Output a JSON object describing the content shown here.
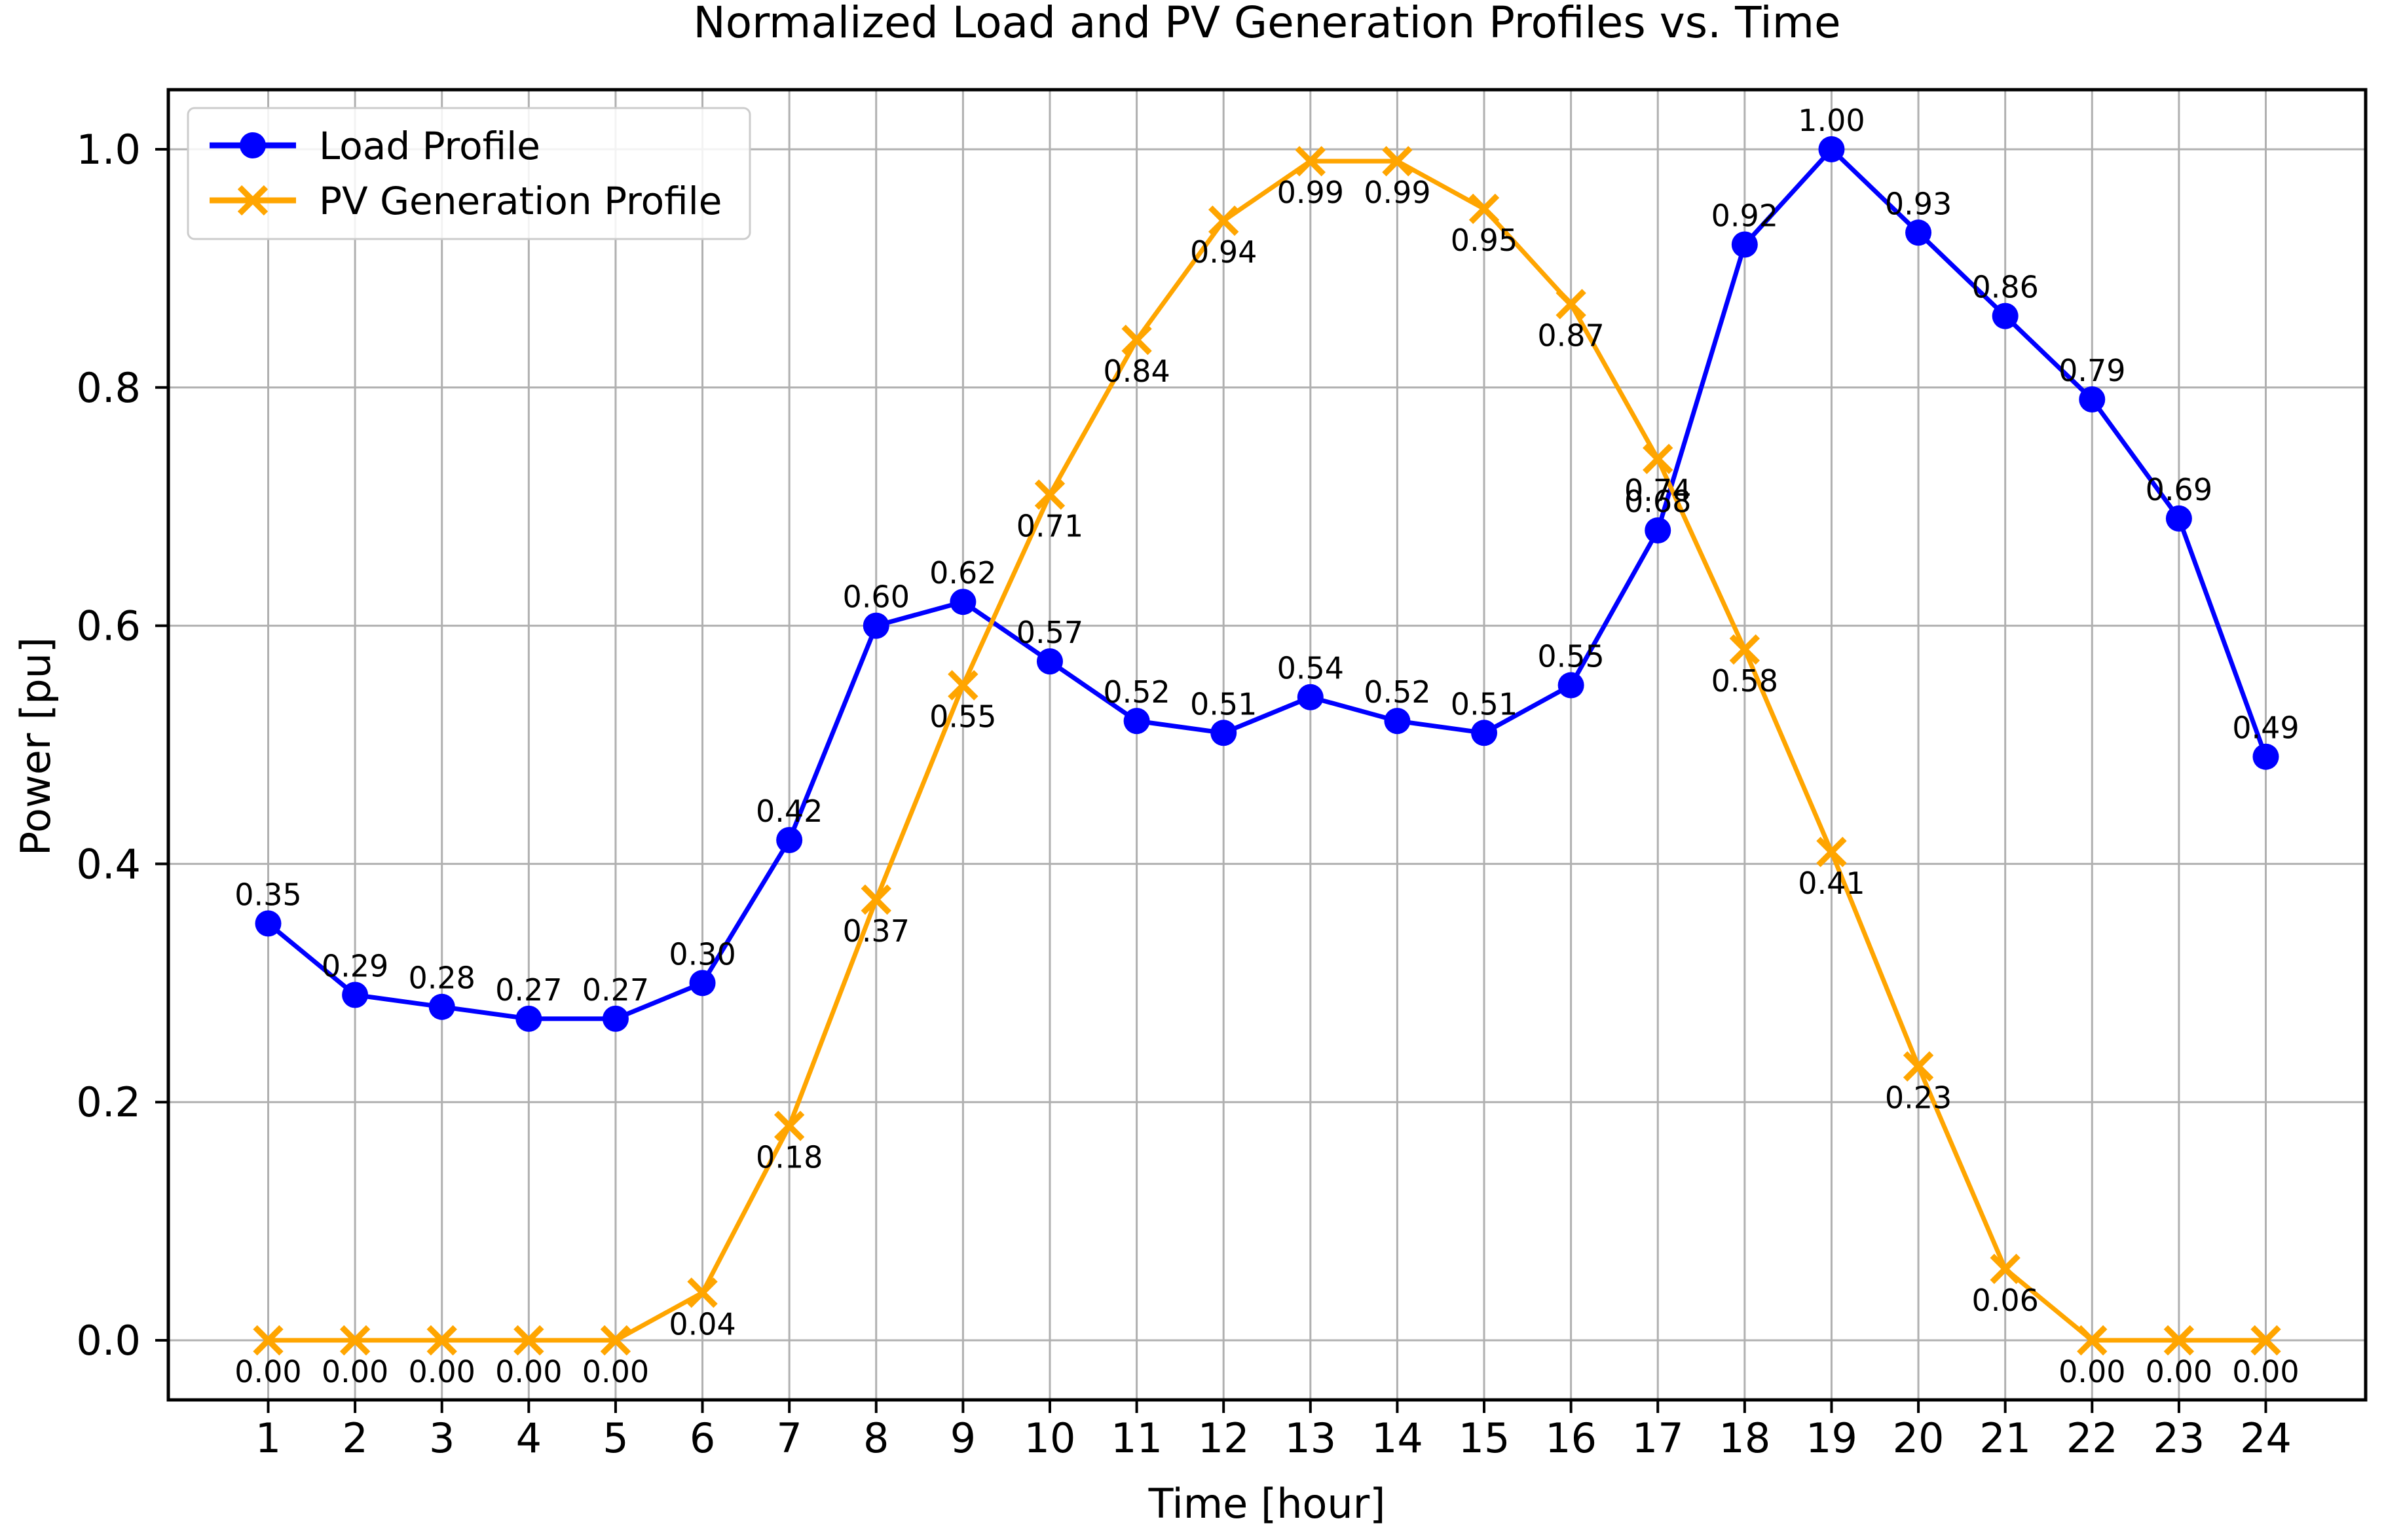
{
  "chart_data": {
    "type": "line",
    "title": "Normalized Load and PV Generation Profiles vs. Time",
    "xlabel": "Time [hour]",
    "ylabel": "Power [pu]",
    "x": [
      1,
      2,
      3,
      4,
      5,
      6,
      7,
      8,
      9,
      10,
      11,
      12,
      13,
      14,
      15,
      16,
      17,
      18,
      19,
      20,
      21,
      22,
      23,
      24
    ],
    "x_tick_labels": [
      "1",
      "2",
      "3",
      "4",
      "5",
      "6",
      "7",
      "8",
      "9",
      "10",
      "11",
      "12",
      "13",
      "14",
      "15",
      "16",
      "17",
      "18",
      "19",
      "20",
      "21",
      "22",
      "23",
      "24"
    ],
    "y_ticks": [
      0.0,
      0.2,
      0.4,
      0.6,
      0.8,
      1.0
    ],
    "y_tick_labels": [
      "0.0",
      "0.2",
      "0.4",
      "0.6",
      "0.8",
      "1.0"
    ],
    "xlim": [
      -0.15,
      25.15
    ],
    "ylim": [
      -0.05,
      1.05
    ],
    "grid": true,
    "legend_position": "upper left",
    "point_labels_decimals": 2,
    "series": [
      {
        "name": "Load Profile",
        "color": "#0000ff",
        "marker": "circle",
        "label_side": "above",
        "values": [
          0.35,
          0.29,
          0.28,
          0.27,
          0.27,
          0.3,
          0.42,
          0.6,
          0.62,
          0.57,
          0.52,
          0.51,
          0.54,
          0.52,
          0.51,
          0.55,
          0.68,
          0.92,
          1.0,
          0.93,
          0.86,
          0.79,
          0.69,
          0.49
        ]
      },
      {
        "name": "PV Generation Profile",
        "color": "#ffa500",
        "marker": "x",
        "label_side": "below",
        "values": [
          0.0,
          0.0,
          0.0,
          0.0,
          0.0,
          0.04,
          0.18,
          0.37,
          0.55,
          0.71,
          0.84,
          0.94,
          0.99,
          0.99,
          0.95,
          0.87,
          0.74,
          0.58,
          0.41,
          0.23,
          0.06,
          0.0,
          0.0,
          0.0
        ]
      }
    ],
    "colors": {
      "grid": "#b0b0b0",
      "spine": "#000000",
      "text": "#000000",
      "legend_border": "#cccccc",
      "background": "#ffffff"
    }
  }
}
